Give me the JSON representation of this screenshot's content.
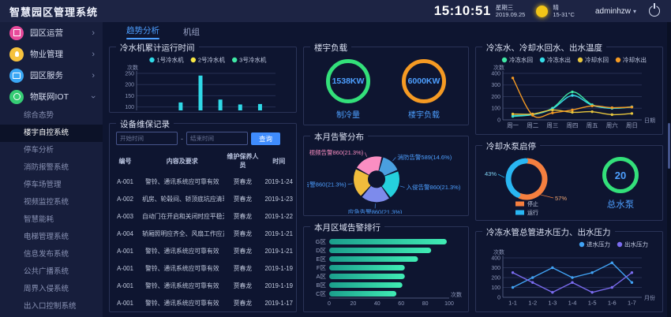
{
  "header": {
    "app_title": "智慧园区管理系统",
    "clock": "15:10:51",
    "weekday": "星期三",
    "date": "2019.09.25",
    "weather_text": "晴",
    "temp_range": "15-31°C",
    "username": "adminhzw"
  },
  "sidebar": {
    "groups": [
      {
        "label": "园区运营",
        "icon": "park-operation-icon",
        "color": "#e84a9b",
        "expanded": false
      },
      {
        "label": "物业管理",
        "icon": "property-management-icon",
        "color": "#f6c23e",
        "expanded": false
      },
      {
        "label": "园区服务",
        "icon": "park-service-icon",
        "color": "#3aa7f5",
        "expanded": false
      },
      {
        "label": "物联网IOT",
        "icon": "iot-icon",
        "color": "#35cc74",
        "expanded": true
      }
    ],
    "submenu": [
      {
        "label": "综合态势",
        "active": false
      },
      {
        "label": "楼宇自控系统",
        "active": true
      },
      {
        "label": "停车分析",
        "active": false
      },
      {
        "label": "消防报警系统",
        "active": false
      },
      {
        "label": "停车场管理",
        "active": false
      },
      {
        "label": "视频监控系统",
        "active": false
      },
      {
        "label": "智慧能耗",
        "active": false
      },
      {
        "label": "电梯管理系统",
        "active": false
      },
      {
        "label": "信息发布系统",
        "active": false
      },
      {
        "label": "公共广播系统",
        "active": false
      },
      {
        "label": "周界入侵系统",
        "active": false
      },
      {
        "label": "出入口控制系统",
        "active": false
      },
      {
        "label": "智能照明系统",
        "active": false
      }
    ]
  },
  "tabs": [
    {
      "label": "趋势分析",
      "active": true
    },
    {
      "label": "机组",
      "active": false
    }
  ],
  "maintenance": {
    "title": "设备维保记录",
    "start_placeholder": "开始时间",
    "end_placeholder": "结束时间",
    "separator": "-",
    "query_label": "查询",
    "columns": [
      "编号",
      "内容及要求",
      "维护保养人员",
      "时间"
    ],
    "rows": [
      [
        "A-001",
        "警铃、通讯系统应可靠有效",
        "贾春龙",
        "2019-1-24"
      ],
      [
        "A-002",
        "机房、轮毂间、轿顶底坑应清理",
        "贾春龙",
        "2019-1-23"
      ],
      [
        "A-003",
        "自动门在开启和关闭时应平稳无震荡",
        "贾春龙",
        "2019-1-22"
      ],
      [
        "A-004",
        "轿厢照明应齐全、风扇工作应正常",
        "贾春龙",
        "2019-1-21"
      ],
      [
        "A-001",
        "警铃、通讯系统应可靠有效",
        "贾春龙",
        "2019-1-21"
      ],
      [
        "A-001",
        "警铃、通讯系统应可靠有效",
        "贾春龙",
        "2019-1-19"
      ],
      [
        "A-001",
        "警铃、通讯系统应可靠有效",
        "贾春龙",
        "2019-1-19"
      ],
      [
        "A-001",
        "警铃、通讯系统应可靠有效",
        "贾春龙",
        "2019-1-17"
      ]
    ]
  },
  "building_load": {
    "title": "楼宇负载",
    "gauges": [
      {
        "value": "1538KW",
        "label": "制冷量",
        "ring_color": "#33e07a"
      },
      {
        "value": "6000KW",
        "label": "楼宇负载",
        "ring_color": "#f59a23"
      }
    ]
  },
  "pump_panel": {
    "title": "冷却水泵启停",
    "donut": {
      "segments": [
        {
          "label": "停止",
          "pct": 57,
          "color": "#f57f3f"
        },
        {
          "label": "运行",
          "pct": 43,
          "color": "#29b6f2"
        }
      ]
    },
    "gauge": {
      "value": "20",
      "label": "总水泵",
      "ring_color": "#33e07a"
    }
  },
  "chart_data": [
    {
      "id": "chiller_runtime",
      "type": "bar",
      "title": "冷水机累计运行时间",
      "ylabel": "次数",
      "xlabel": "小时",
      "ylim": [
        0,
        250
      ],
      "yticks": [
        0,
        50,
        100,
        150,
        200,
        250
      ],
      "categories": [
        "周一",
        "周二",
        "周三",
        "周四",
        "周五",
        "周六",
        "周日"
      ],
      "series": [
        {
          "name": "1号冷水机",
          "color": "#2fd9e7",
          "values": [
            32,
            60,
            120,
            240,
            133,
            111,
            113
          ]
        },
        {
          "name": "2号冷水机",
          "color": "#f7e744",
          "values": [
            32,
            41,
            51,
            51,
            53,
            42,
            45
          ]
        },
        {
          "name": "3号冷水机",
          "color": "#3fe8a5",
          "values": [
            51,
            60,
            60,
            56,
            64,
            51,
            53
          ]
        }
      ]
    },
    {
      "id": "alarm_distribution",
      "type": "pie",
      "title": "本月告警分布",
      "start_angle": 15,
      "slices": [
        {
          "label": "消防告警589(14.6%)",
          "value": 14.6,
          "color": "#4aa0e0",
          "label_color": "#4d9fff"
        },
        {
          "label": "入侵告警860(21.3%)",
          "value": 21.3,
          "color": "#25d0dd",
          "label_color": "#4d9fff"
        },
        {
          "label": "应急告警860(21.3%)",
          "value": 21.3,
          "color": "#7d8bec",
          "label_color": "#4d9fff"
        },
        {
          "label": "门禁告警860(21.3%)",
          "value": 21.3,
          "color": "#f0bc3c",
          "label_color": "#4d9fff"
        },
        {
          "label": "视频告警860(21.3%)",
          "value": 21.3,
          "color": "#fa8ec2",
          "label_color": "#fa8ec2"
        }
      ]
    },
    {
      "id": "area_alarm_rank",
      "type": "hbar",
      "title": "本月区域告警排行",
      "xlabel": "次数",
      "xticks": [
        0,
        20,
        40,
        60,
        80,
        100
      ],
      "categories": [
        "G区",
        "D区",
        "E区",
        "F区",
        "A区",
        "B区",
        "C区"
      ],
      "values": [
        98,
        85,
        74,
        63,
        63,
        61,
        56
      ],
      "bar_color_start": "#1b9e8c",
      "bar_color_end": "#40ecb4"
    },
    {
      "id": "water_temps",
      "type": "line",
      "title": "冷冻水、冷却水回水、出水温度",
      "ylabel": "次数",
      "xlabel": "日期",
      "smooth": true,
      "legend": "center",
      "yticks": [
        0,
        100,
        200,
        300,
        400
      ],
      "categories": [
        "周一",
        "周二",
        "周三",
        "周四",
        "周五",
        "周六",
        "周日"
      ],
      "series": [
        {
          "name": "冷冻水回",
          "color": "#3fe8a5",
          "values": [
            30,
            45,
            100,
            240,
            130,
            100,
            110
          ]
        },
        {
          "name": "冷冻水出",
          "color": "#35dce8",
          "values": [
            35,
            45,
            95,
            210,
            125,
            100,
            112
          ]
        },
        {
          "name": "冷却水回",
          "color": "#e8c63d",
          "values": [
            50,
            50,
            85,
            65,
            70,
            45,
            55
          ]
        },
        {
          "name": "冷却水出",
          "color": "#f59a23",
          "values": [
            360,
            40,
            60,
            85,
            120,
            105,
            110
          ]
        }
      ]
    },
    {
      "id": "pressure",
      "type": "line",
      "title": "冷冻水管总管进水压力、出水压力",
      "ylabel": "次数",
      "xlabel": "月份",
      "smooth": false,
      "legend": "right",
      "yticks": [
        0,
        100,
        200,
        300,
        400
      ],
      "categories": [
        "1-1",
        "1-2",
        "1-3",
        "1-4",
        "1-5",
        "1-6",
        "1-7"
      ],
      "series": [
        {
          "name": "进水压力",
          "color": "#41a3f5",
          "values": [
            100,
            200,
            300,
            200,
            250,
            350,
            150
          ]
        },
        {
          "name": "出水压力",
          "color": "#7b6cf0",
          "values": [
            250,
            150,
            50,
            150,
            50,
            100,
            250
          ]
        }
      ]
    }
  ]
}
